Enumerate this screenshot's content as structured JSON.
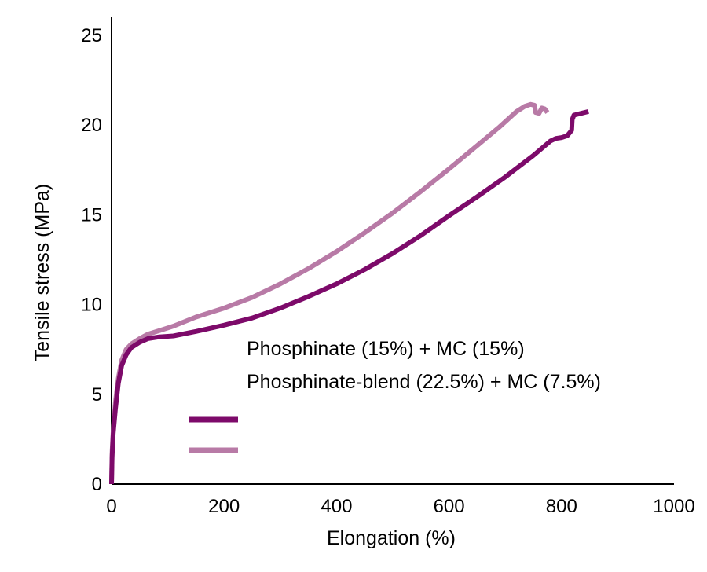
{
  "chart_data": {
    "type": "line",
    "title": "",
    "xlabel": "Elongation (%)",
    "ylabel": "Tensile stress (MPa)",
    "xlim": [
      0,
      1000
    ],
    "ylim": [
      0,
      26
    ],
    "x_ticks": [
      0,
      200,
      400,
      600,
      800,
      1000
    ],
    "y_ticks": [
      0,
      5,
      10,
      15,
      20,
      25
    ],
    "grid": false,
    "legend_position": "center-right",
    "series": [
      {
        "name": "Phosphinate (15%) + MC (15%)",
        "color": "#7d0a6a",
        "points": [
          [
            0,
            0
          ],
          [
            1,
            1.5
          ],
          [
            3,
            2.8
          ],
          [
            7,
            4.2
          ],
          [
            12,
            5.6
          ],
          [
            18,
            6.6
          ],
          [
            26,
            7.2
          ],
          [
            35,
            7.6
          ],
          [
            50,
            7.9
          ],
          [
            65,
            8.1
          ],
          [
            85,
            8.2
          ],
          [
            110,
            8.25
          ],
          [
            150,
            8.5
          ],
          [
            200,
            8.85
          ],
          [
            250,
            9.25
          ],
          [
            300,
            9.8
          ],
          [
            350,
            10.45
          ],
          [
            400,
            11.15
          ],
          [
            450,
            11.95
          ],
          [
            500,
            12.85
          ],
          [
            550,
            13.85
          ],
          [
            600,
            14.95
          ],
          [
            650,
            16.0
          ],
          [
            700,
            17.1
          ],
          [
            750,
            18.3
          ],
          [
            780,
            19.1
          ],
          [
            790,
            19.25
          ],
          [
            800,
            19.3
          ],
          [
            810,
            19.4
          ],
          [
            818,
            19.7
          ],
          [
            819,
            20.3
          ],
          [
            822,
            20.55
          ],
          [
            835,
            20.65
          ],
          [
            848,
            20.75
          ]
        ]
      },
      {
        "name": "Phosphinate-blend (22.5%) + MC (7.5%)",
        "color": "#b87aa6",
        "points": [
          [
            0,
            0
          ],
          [
            1,
            1.8
          ],
          [
            3,
            3.0
          ],
          [
            7,
            4.6
          ],
          [
            12,
            5.9
          ],
          [
            18,
            6.9
          ],
          [
            26,
            7.5
          ],
          [
            35,
            7.8
          ],
          [
            50,
            8.1
          ],
          [
            65,
            8.35
          ],
          [
            85,
            8.55
          ],
          [
            110,
            8.8
          ],
          [
            150,
            9.3
          ],
          [
            200,
            9.8
          ],
          [
            250,
            10.4
          ],
          [
            300,
            11.15
          ],
          [
            350,
            12.0
          ],
          [
            400,
            12.95
          ],
          [
            450,
            14.0
          ],
          [
            500,
            15.1
          ],
          [
            550,
            16.3
          ],
          [
            600,
            17.55
          ],
          [
            650,
            18.85
          ],
          [
            690,
            19.9
          ],
          [
            720,
            20.75
          ],
          [
            735,
            21.05
          ],
          [
            745,
            21.15
          ],
          [
            752,
            21.1
          ],
          [
            754,
            20.7
          ],
          [
            760,
            20.65
          ],
          [
            765,
            20.95
          ],
          [
            770,
            20.9
          ],
          [
            775,
            20.7
          ]
        ]
      }
    ]
  }
}
